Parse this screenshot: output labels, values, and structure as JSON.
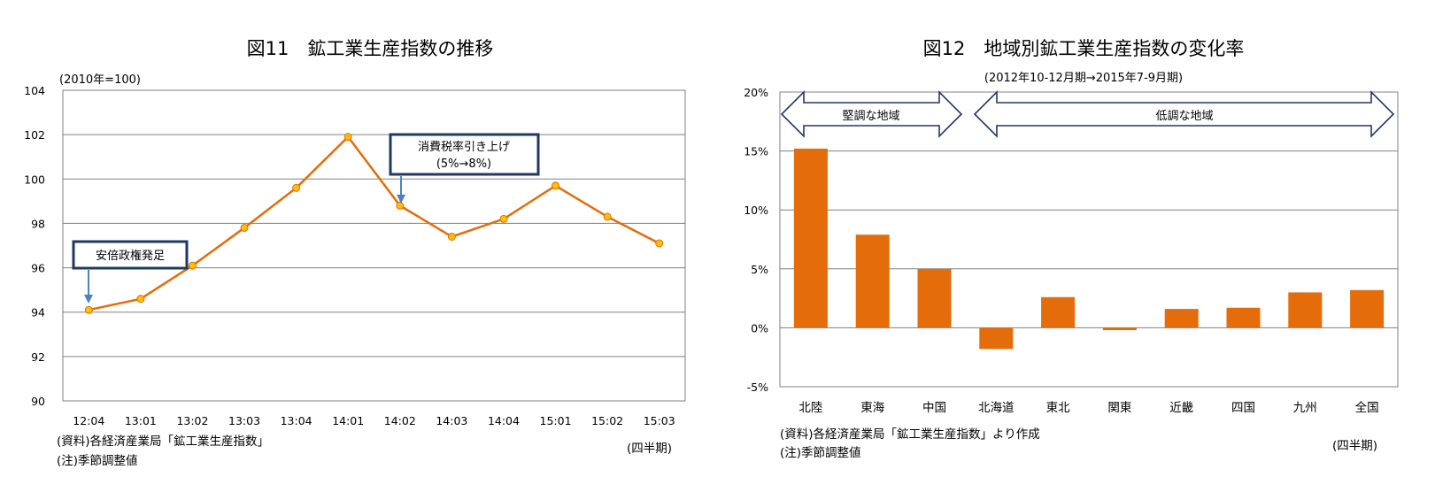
{
  "chart_data": [
    {
      "type": "line",
      "title": "図11　鉱工業生産指数の推移",
      "subtitle": "(2010年=100)",
      "categories": [
        "12:04",
        "13:01",
        "13:02",
        "13:03",
        "13:04",
        "14:01",
        "14:02",
        "14:03",
        "14:04",
        "15:01",
        "15:02",
        "15:03"
      ],
      "values": [
        94.1,
        94.6,
        96.1,
        97.8,
        99.6,
        101.9,
        98.8,
        97.4,
        98.2,
        99.7,
        98.3,
        97.1
      ],
      "ylim": [
        90,
        104
      ],
      "yticks": [
        "90",
        "92",
        "94",
        "96",
        "98",
        "100",
        "102",
        "104"
      ],
      "grid": true,
      "xunit": "(四半期)",
      "line_color": "#E46C0A",
      "annotations": [
        {
          "text": "安倍政権発足",
          "category": "12:04"
        },
        {
          "line1": "消費税率引き上げ",
          "line2": "(5%→8%)",
          "category": "14:02"
        }
      ],
      "notes": [
        "(資料)各経済産業局「鉱工業生産指数」",
        "(注)季節調整値"
      ]
    },
    {
      "type": "bar",
      "title": "図12　地域別鉱工業生産指数の変化率",
      "subtitle": "(2012年10-12月期→2015年7-9月期)",
      "categories": [
        "北陸",
        "東海",
        "中国",
        "北海道",
        "東北",
        "関東",
        "近畿",
        "四国",
        "九州",
        "全国"
      ],
      "values": [
        15.2,
        7.9,
        5.0,
        -1.8,
        2.6,
        -0.2,
        1.6,
        1.7,
        3.0,
        3.2
      ],
      "ylim": [
        -5,
        20
      ],
      "yticks": [
        "-5%",
        "0%",
        "5%",
        "10%",
        "15%",
        "20%"
      ],
      "grid": true,
      "xunit": "(四半期)",
      "bar_color": "#E46C0A",
      "annotations": [
        {
          "text": "堅調な地域",
          "from": "北陸",
          "to": "中国"
        },
        {
          "text": "低調な地域",
          "from": "北海道",
          "to": "全国"
        }
      ],
      "notes": [
        "(資料)各経済産業局「鉱工業生産指数」より作成",
        "(注)季節調整値"
      ]
    }
  ]
}
